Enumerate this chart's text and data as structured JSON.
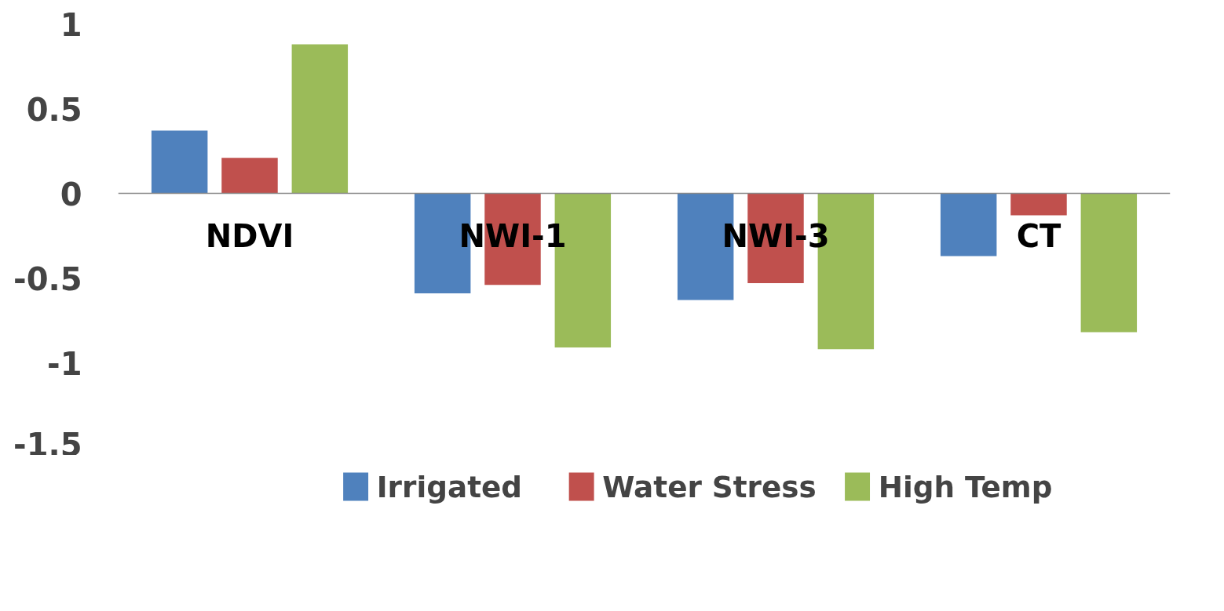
{
  "chart_data": {
    "type": "bar",
    "categories": [
      "NDVI",
      "NWI-1",
      "NWI-3",
      "CT"
    ],
    "series": [
      {
        "name": "Irrigated",
        "color": "#4f81bd",
        "values": [
          0.37,
          -0.59,
          -0.63,
          -0.37
        ]
      },
      {
        "name": "Water Stress",
        "color": "#c0504d",
        "values": [
          0.21,
          -0.54,
          -0.53,
          -0.13
        ]
      },
      {
        "name": "High Temp",
        "color": "#9bbb59",
        "values": [
          0.88,
          -0.91,
          -0.92,
          -0.82
        ]
      }
    ],
    "ylim": [
      -1.5,
      1
    ],
    "yticks": [
      1,
      0.5,
      0,
      -0.5,
      -1,
      -1.5
    ],
    "grid": false,
    "legend": "bottom"
  }
}
